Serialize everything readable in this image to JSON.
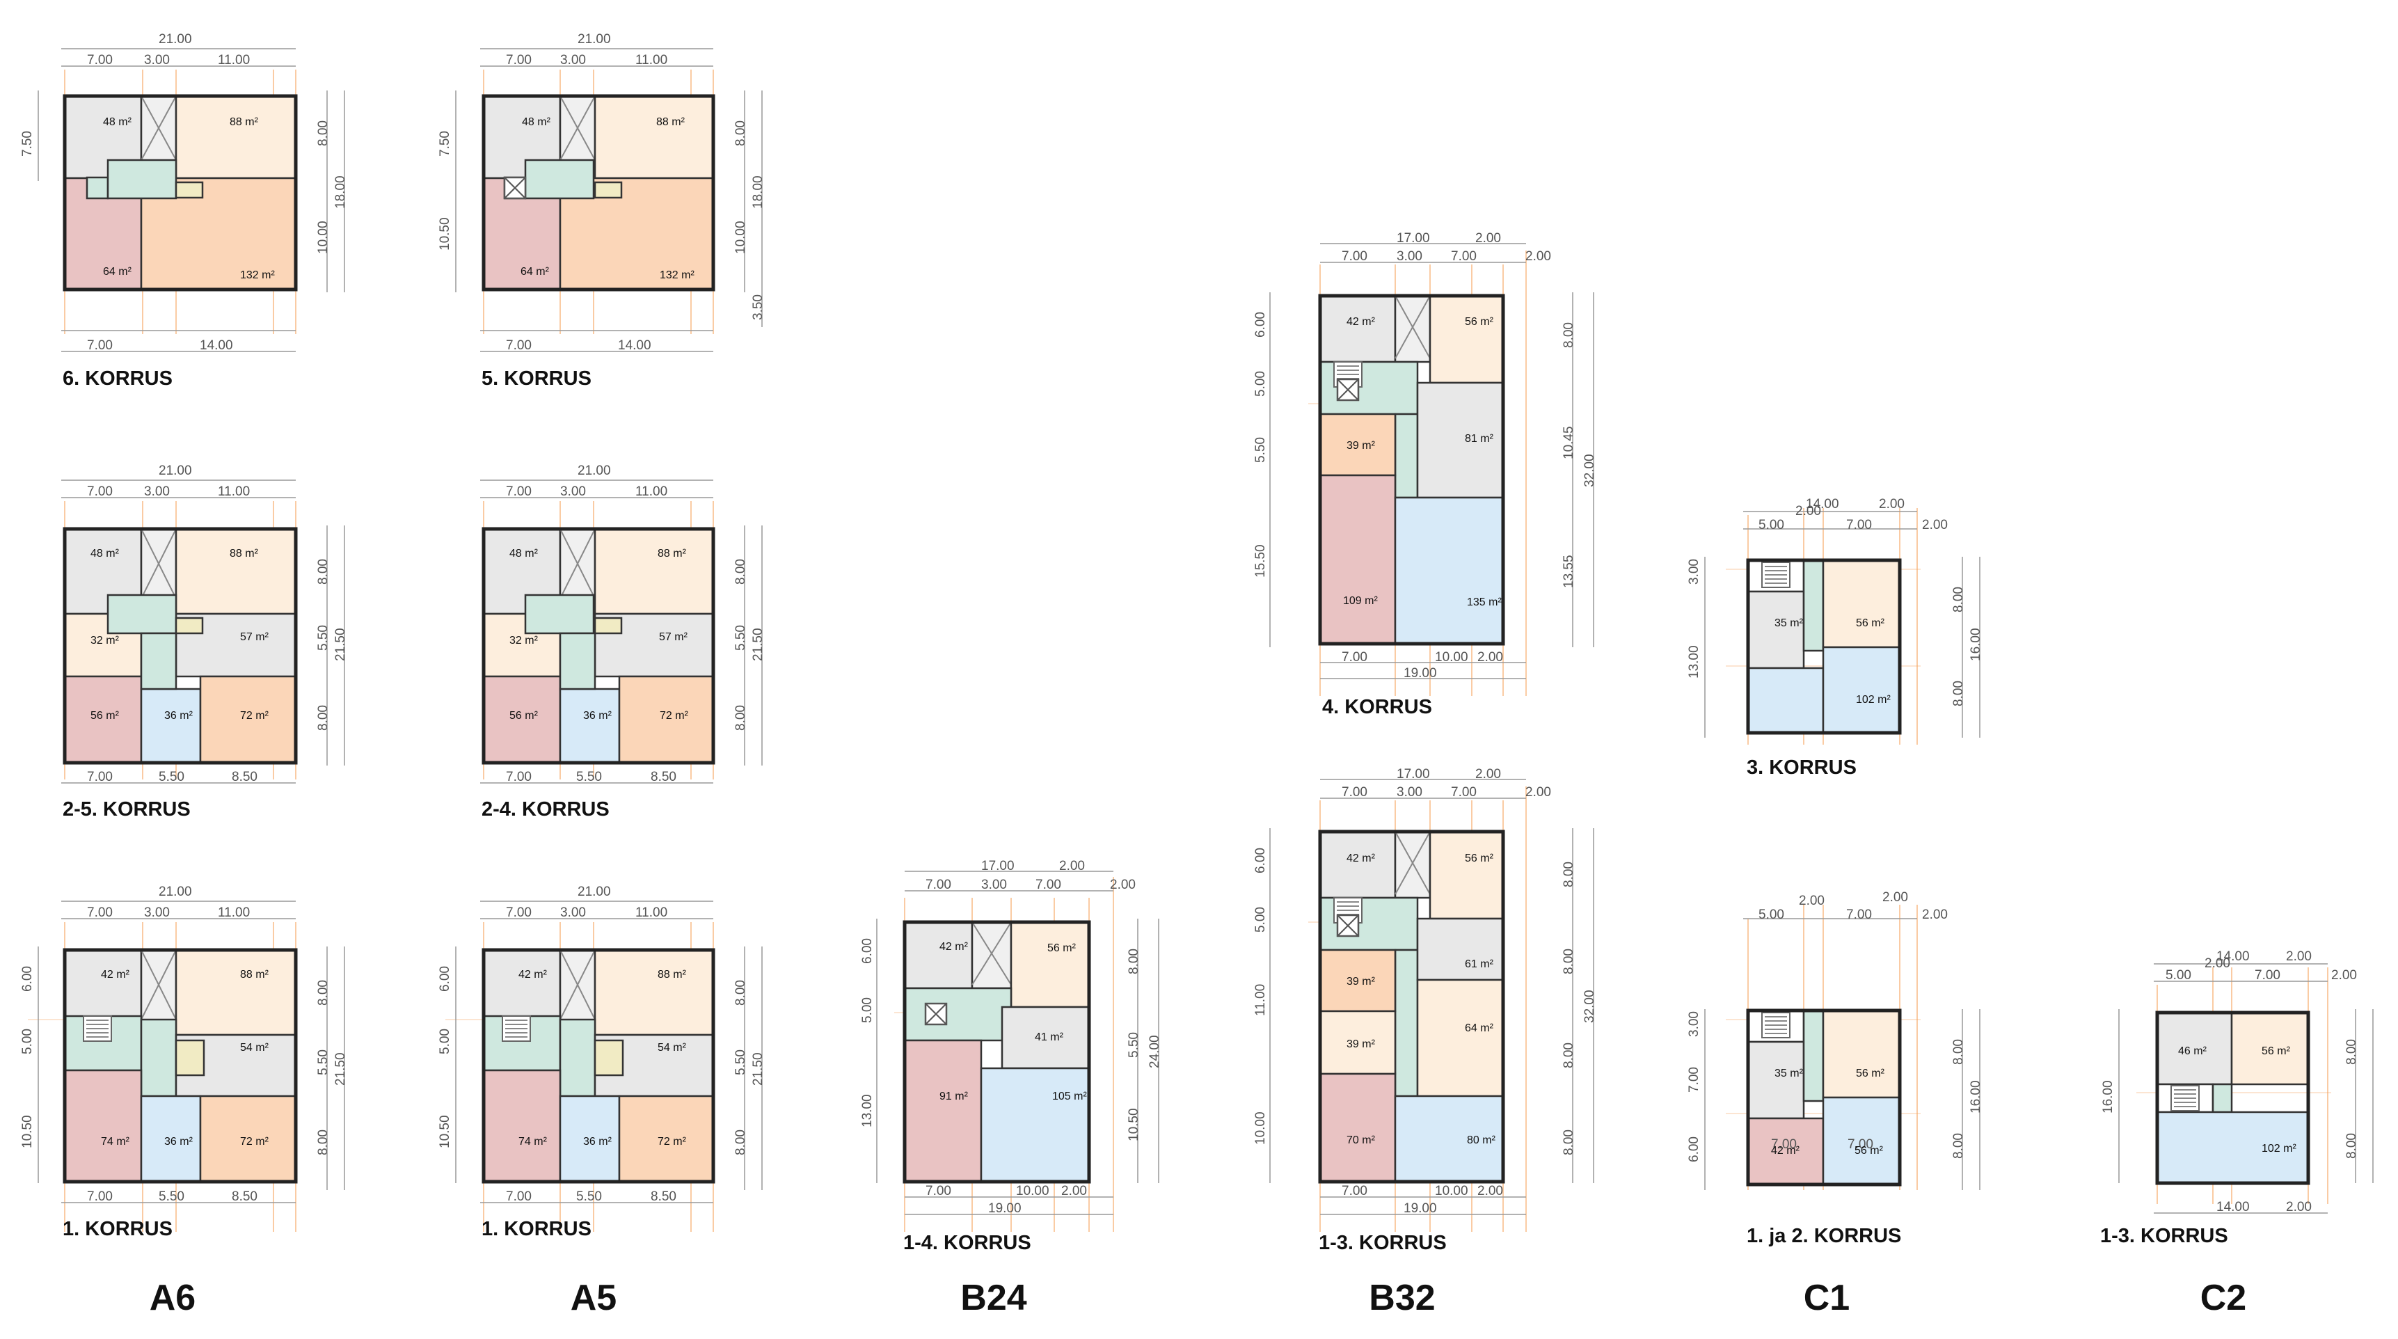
{
  "colors": {
    "outline": "#222222",
    "guide": "#f5a25a",
    "dimension": "#999999",
    "room_grey": "#e8e8e8",
    "room_cream": "#fdeedd",
    "room_peach": "#fbd6b8",
    "room_pink": "#e9c3c3",
    "room_blue": "#d7eaf8",
    "core_teal": "#cfe8df",
    "storage_yellow": "#f1ebc4"
  },
  "icons": [
    "stair-icon",
    "elevator-icon",
    "shaft-cross-icon"
  ],
  "buildings": [
    {
      "id": "A6",
      "label": "A6",
      "plans": [
        {
          "floor": "6. KORRUS",
          "dims_top": [
            "21.00",
            "7.00",
            "3.00",
            "11.00"
          ],
          "dims_right": [
            "8.00",
            "18.00",
            "10.00"
          ],
          "dims_left": [
            "7.50"
          ],
          "dims_bottom": [
            "7.00",
            "14.00"
          ],
          "rooms": [
            "48 m²",
            "88 m²",
            "64 m²",
            "132 m²"
          ]
        },
        {
          "floor": "2-5. KORRUS",
          "dims_top": [
            "21.00",
            "7.00",
            "3.00",
            "11.00"
          ],
          "dims_right": [
            "8.00",
            "5.50",
            "21.50",
            "8.00"
          ],
          "dims_left": [],
          "dims_bottom": [
            "7.00",
            "5.50",
            "8.50"
          ],
          "rooms": [
            "48 m²",
            "88 m²",
            "32 m²",
            "57 m²",
            "56 m²",
            "36 m²",
            "72 m²"
          ]
        },
        {
          "floor": "1. KORRUS",
          "dims_top": [
            "21.00",
            "7.00",
            "3.00",
            "11.00"
          ],
          "dims_right": [
            "8.00",
            "5.50",
            "21.50",
            "8.00"
          ],
          "dims_left": [
            "6.00",
            "5.00",
            "10.50"
          ],
          "dims_bottom": [
            "7.00",
            "5.50",
            "8.50"
          ],
          "rooms": [
            "42 m²",
            "88 m²",
            "54 m²",
            "74 m²",
            "36 m²",
            "72 m²"
          ]
        }
      ]
    },
    {
      "id": "A5",
      "label": "A5",
      "plans": [
        {
          "floor": "5. KORRUS",
          "dims_top": [
            "21.00",
            "7.00",
            "3.00",
            "11.00"
          ],
          "dims_right": [
            "8.00",
            "18.00",
            "10.00",
            "3.50"
          ],
          "dims_left": [
            "7.50",
            "10.50"
          ],
          "dims_bottom": [
            "7.00",
            "14.00"
          ],
          "rooms": [
            "48 m²",
            "88 m²",
            "64 m²",
            "132 m²"
          ]
        },
        {
          "floor": "2-4. KORRUS",
          "dims_top": [
            "21.00",
            "7.00",
            "3.00",
            "11.00"
          ],
          "dims_right": [
            "8.00",
            "5.50",
            "21.50",
            "8.00"
          ],
          "dims_left": [],
          "dims_bottom": [
            "7.00",
            "5.50",
            "8.50"
          ],
          "rooms": [
            "48 m²",
            "88 m²",
            "32 m²",
            "57 m²",
            "56 m²",
            "36 m²",
            "72 m²"
          ]
        },
        {
          "floor": "1. KORRUS",
          "dims_top": [
            "21.00",
            "7.00",
            "3.00",
            "11.00"
          ],
          "dims_right": [
            "8.00",
            "5.50",
            "21.50",
            "8.00"
          ],
          "dims_left": [
            "6.00",
            "5.00",
            "10.50"
          ],
          "dims_bottom": [
            "7.00",
            "5.50",
            "8.50"
          ],
          "rooms": [
            "42 m²",
            "88 m²",
            "54 m²",
            "74 m²",
            "36 m²",
            "72 m²"
          ]
        }
      ]
    },
    {
      "id": "B24",
      "label": "B24",
      "plans": [
        {
          "floor": "1-4. KORRUS",
          "dims_top": [
            "17.00",
            "2.00",
            "7.00",
            "3.00",
            "7.00",
            "2.00"
          ],
          "dims_right": [
            "8.00",
            "5.50",
            "24.00",
            "10.50"
          ],
          "dims_left": [
            "6.00",
            "5.00",
            "13.00"
          ],
          "dims_bottom": [
            "7.00",
            "10.00",
            "2.00",
            "19.00"
          ],
          "rooms": [
            "42 m²",
            "56 m²",
            "41 m²",
            "91 m²",
            "105 m²"
          ]
        }
      ]
    },
    {
      "id": "B32",
      "label": "B32",
      "plans": [
        {
          "floor": "4. KORRUS",
          "dims_top": [
            "17.00",
            "2.00",
            "7.00",
            "3.00",
            "7.00",
            "2.00"
          ],
          "dims_right": [
            "8.00",
            "10.45",
            "32.00",
            "13.55"
          ],
          "dims_left": [
            "6.00",
            "5.00",
            "5.50",
            "15.50"
          ],
          "dims_bottom": [
            "7.00",
            "10.00",
            "2.00",
            "19.00"
          ],
          "rooms": [
            "42 m²",
            "56 m²",
            "39 m²",
            "81 m²",
            "109 m²",
            "135 m²"
          ]
        },
        {
          "floor": "1-3. KORRUS",
          "dims_top": [
            "17.00",
            "2.00",
            "7.00",
            "3.00",
            "7.00",
            "2.00"
          ],
          "dims_right": [
            "8.00",
            "8.00",
            "32.00",
            "8.00",
            "8.00"
          ],
          "dims_left": [
            "6.00",
            "5.00",
            "11.00",
            "10.00"
          ],
          "dims_bottom": [
            "7.00",
            "10.00",
            "2.00",
            "19.00"
          ],
          "rooms": [
            "42 m²",
            "56 m²",
            "39 m²",
            "61 m²",
            "39 m²",
            "64 m²",
            "70 m²",
            "80 m²"
          ]
        }
      ]
    },
    {
      "id": "C1",
      "label": "C1",
      "plans": [
        {
          "floor": "3. KORRUS",
          "dims_top": [
            "14.00",
            "2.00",
            "2.00",
            "5.00",
            "7.00",
            "2.00"
          ],
          "dims_right": [
            "8.00",
            "16.00",
            "8.00"
          ],
          "dims_left": [
            "3.00",
            "13.00"
          ],
          "dims_bottom": [],
          "rooms": [
            "35 m²",
            "56 m²",
            "102 m²"
          ]
        },
        {
          "floor": "1. ja 2. KORRUS",
          "dims_top": [
            "2.00",
            "2.00",
            "5.00",
            "7.00",
            "2.00"
          ],
          "dims_right": [
            "8.00",
            "16.00",
            "8.00"
          ],
          "dims_left": [
            "3.00",
            "7.00",
            "6.00"
          ],
          "dims_bottom": [],
          "rooms": [
            "35 m²",
            "56 m²",
            "42 m²",
            "56 m²"
          ],
          "inner_dims": [
            "7.00",
            "7.00"
          ]
        }
      ]
    },
    {
      "id": "C2",
      "label": "C2",
      "plans": [
        {
          "floor": "1-3. KORRUS",
          "dims_top": [
            "14.00",
            "2.00",
            "2.00",
            "5.00",
            "7.00",
            "2.00"
          ],
          "dims_right": [
            "8.00",
            "8.00"
          ],
          "dims_left": [
            "16.00"
          ],
          "dims_bottom": [
            "14.00",
            "2.00"
          ],
          "rooms": [
            "46 m²",
            "56 m²",
            "102 m²"
          ]
        }
      ]
    }
  ]
}
